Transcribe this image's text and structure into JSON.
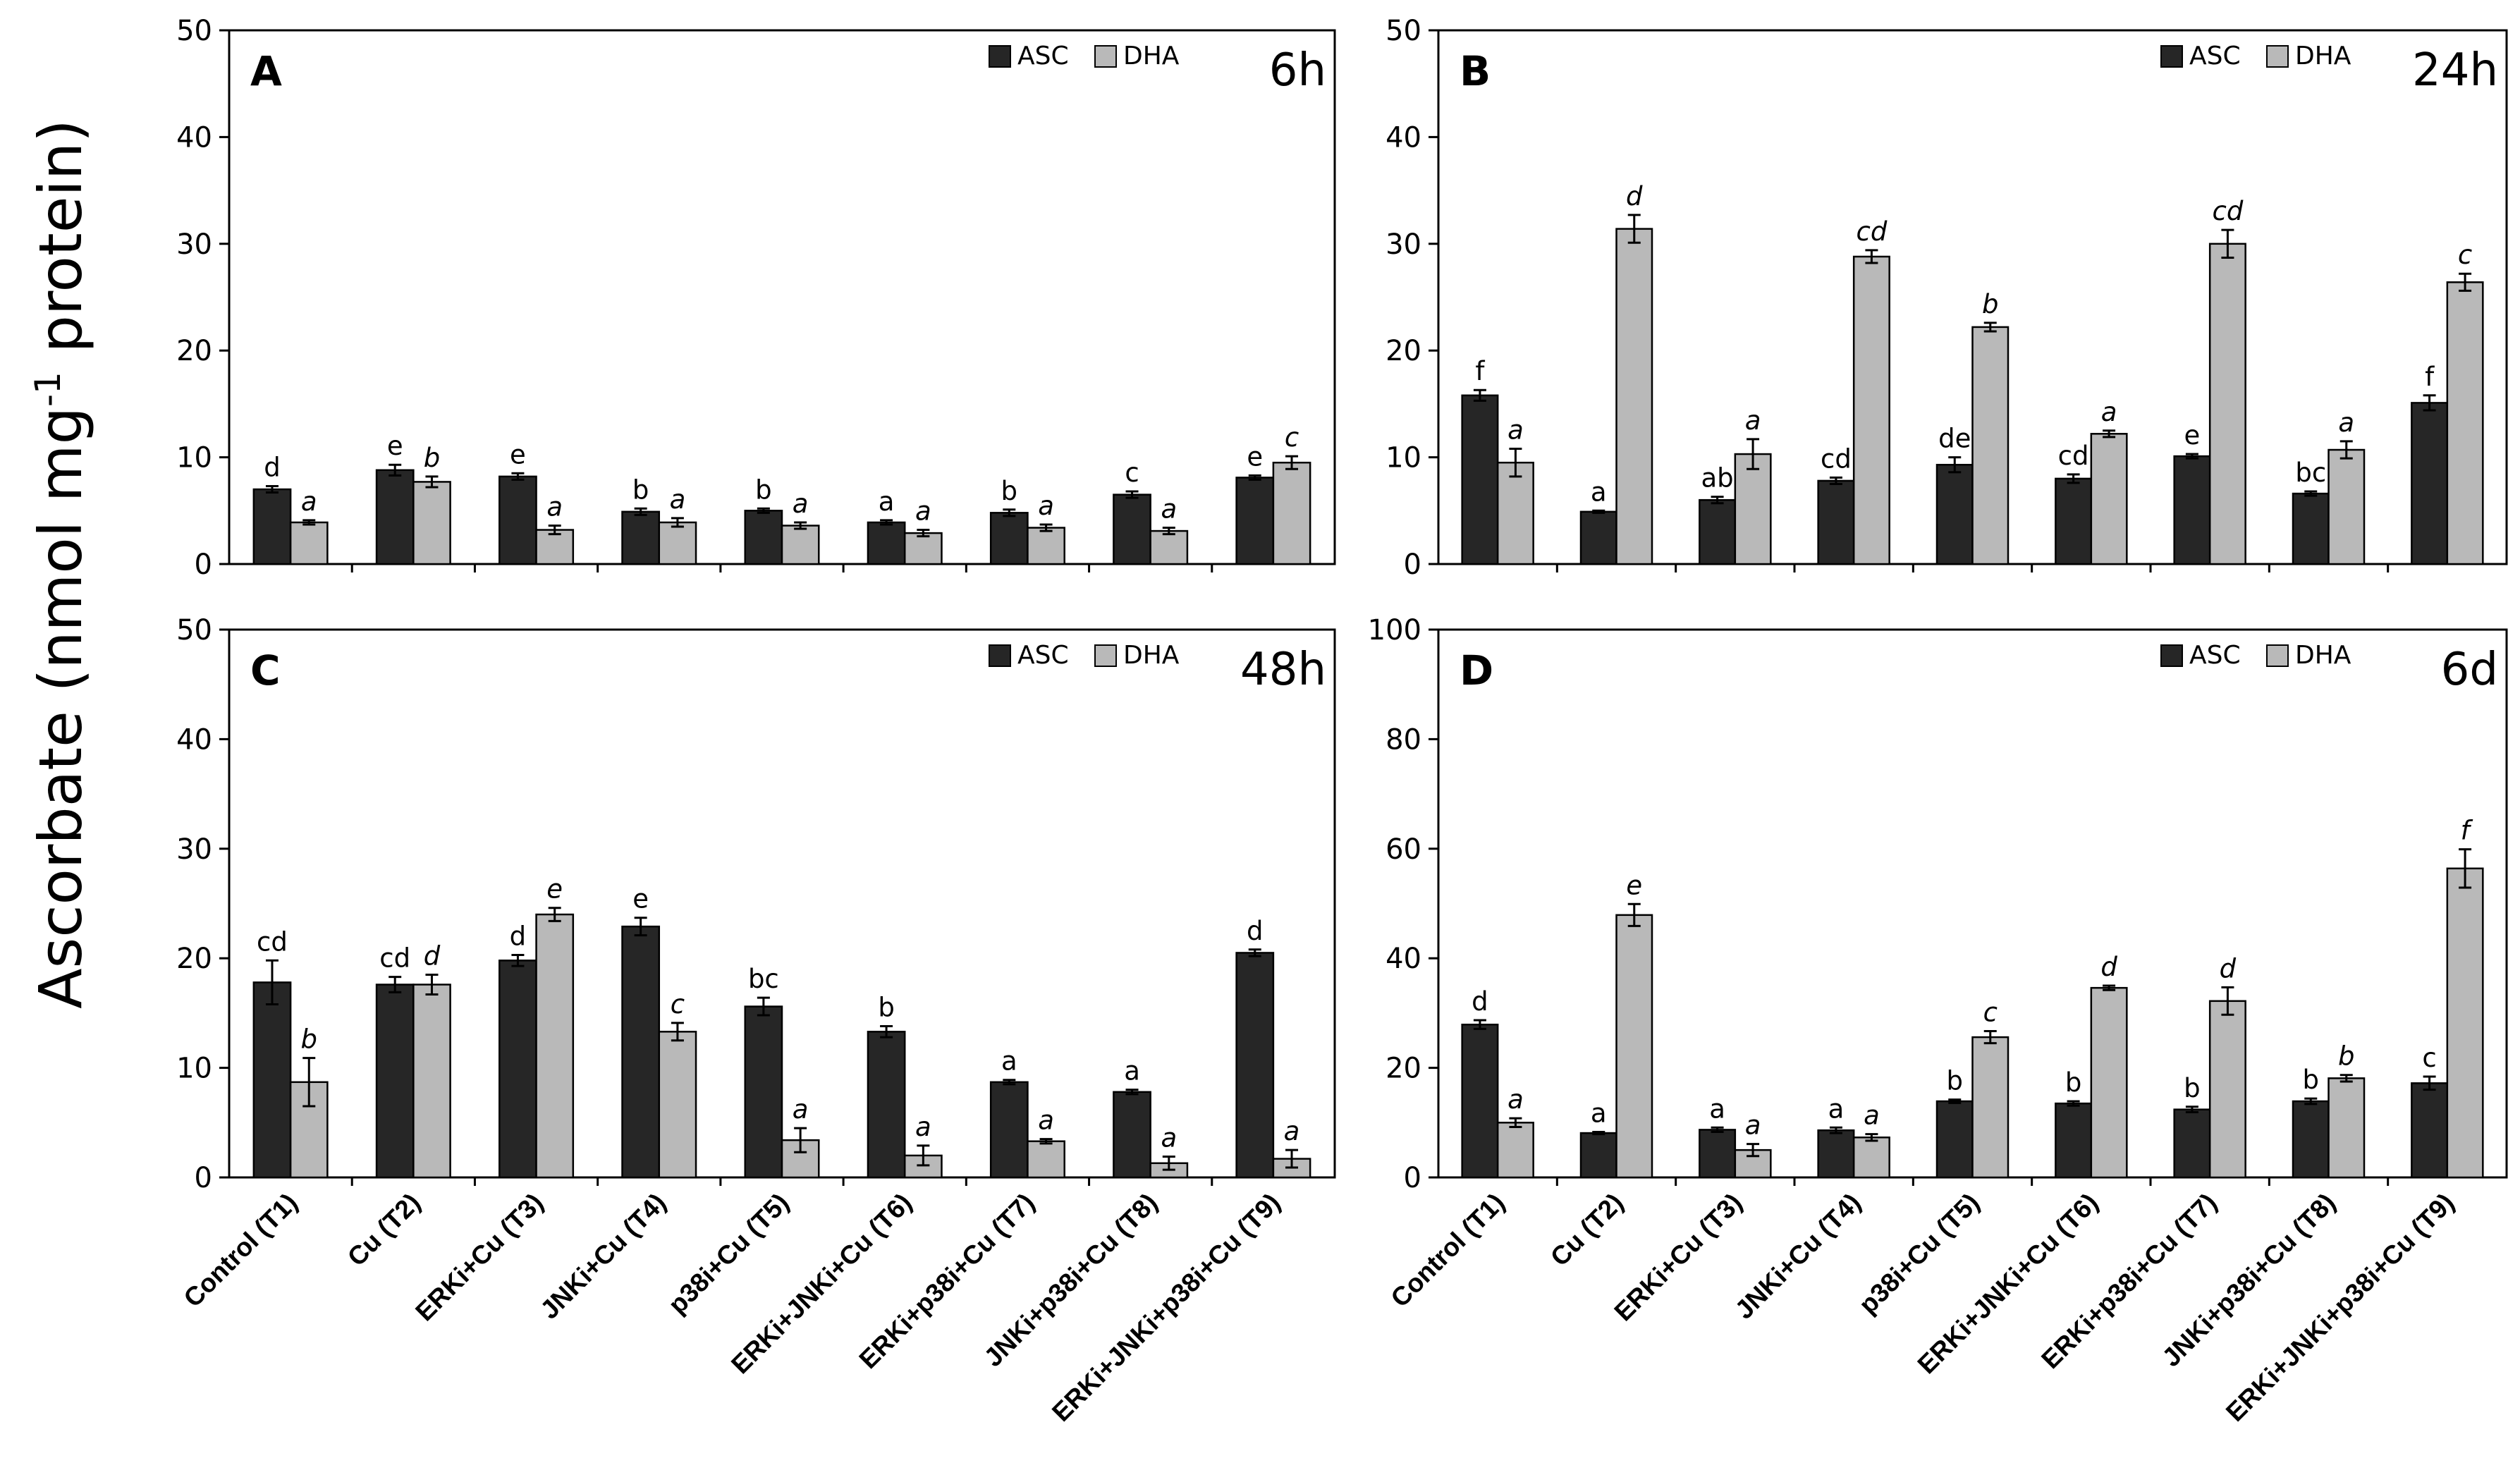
{
  "y_axis_label": "Ascorbate (nmol mg",
  "y_axis_label_sup": "-1",
  "y_axis_label_end": " protein)",
  "colors": {
    "asc": "#262626",
    "dha": "#b9b9b9",
    "axis": "#000000"
  },
  "legend": {
    "asc": "ASC",
    "dha": "DHA"
  },
  "chart_data": [
    {
      "panel": "A",
      "type": "bar",
      "time_label": "6h",
      "ylim": [
        0,
        50
      ],
      "yticks": [
        0,
        10,
        20,
        30,
        40,
        50
      ],
      "categories": [
        "Control (T1)",
        "Cu (T2)",
        "ERKi+Cu (T3)",
        "JNKi+Cu (T4)",
        "p38i+Cu (T5)",
        "ERKi+JNKi+Cu (T6)",
        "ERKi+p38i+Cu (T7)",
        "JNKi+p38i+Cu (T8)",
        "ERKi+JNKi+p38i+Cu (T9)"
      ],
      "show_category_labels": false,
      "series": [
        {
          "name": "ASC",
          "values": [
            7.0,
            8.8,
            8.2,
            4.9,
            5.0,
            3.9,
            4.8,
            6.5,
            8.1
          ],
          "errors": [
            0.3,
            0.5,
            0.3,
            0.3,
            0.2,
            0.2,
            0.3,
            0.3,
            0.2
          ],
          "labels": [
            "d",
            "e",
            "e",
            "b",
            "b",
            "a",
            "b",
            "c",
            "e"
          ]
        },
        {
          "name": "DHA",
          "values": [
            3.9,
            7.7,
            3.2,
            3.9,
            3.6,
            2.9,
            3.4,
            3.1,
            9.5
          ],
          "errors": [
            0.2,
            0.5,
            0.4,
            0.4,
            0.3,
            0.3,
            0.3,
            0.3,
            0.6
          ],
          "labels": [
            "a",
            "b",
            "a",
            "a",
            "a",
            "a",
            "a",
            "a",
            "c"
          ]
        }
      ]
    },
    {
      "panel": "B",
      "type": "bar",
      "time_label": "24h",
      "ylim": [
        0,
        50
      ],
      "yticks": [
        0,
        10,
        20,
        30,
        40,
        50
      ],
      "categories": [
        "Control (T1)",
        "Cu (T2)",
        "ERKi+Cu (T3)",
        "JNKi+Cu (T4)",
        "p38i+Cu (T5)",
        "ERKi+JNKi+Cu (T6)",
        "ERKi+p38i+Cu (T7)",
        "JNKi+p38i+Cu (T8)",
        "ERKi+JNKi+p38i+Cu (T9)"
      ],
      "show_category_labels": false,
      "series": [
        {
          "name": "ASC",
          "values": [
            15.8,
            4.9,
            6.0,
            7.8,
            9.3,
            8.0,
            10.1,
            6.6,
            15.1
          ],
          "errors": [
            0.5,
            0.1,
            0.3,
            0.3,
            0.7,
            0.4,
            0.2,
            0.2,
            0.7
          ],
          "labels": [
            "f",
            "a",
            "ab",
            "cd",
            "de",
            "cd",
            "e",
            "bc",
            "f"
          ]
        },
        {
          "name": "DHA",
          "values": [
            9.5,
            31.4,
            10.3,
            28.8,
            22.2,
            12.2,
            30.0,
            10.7,
            26.4
          ],
          "errors": [
            1.3,
            1.3,
            1.4,
            0.6,
            0.4,
            0.3,
            1.3,
            0.8,
            0.8
          ],
          "labels": [
            "a",
            "d",
            "a",
            "cd",
            "b",
            "a",
            "cd",
            "a",
            "c"
          ]
        }
      ]
    },
    {
      "panel": "C",
      "type": "bar",
      "time_label": "48h",
      "ylim": [
        0,
        50
      ],
      "yticks": [
        0,
        10,
        20,
        30,
        40,
        50
      ],
      "categories": [
        "Control (T1)",
        "Cu (T2)",
        "ERKi+Cu (T3)",
        "JNKi+Cu (T4)",
        "p38i+Cu (T5)",
        "ERKi+JNKi+Cu (T6)",
        "ERKi+p38i+Cu (T7)",
        "JNKi+p38i+Cu (T8)",
        "ERKi+JNKi+p38i+Cu (T9)"
      ],
      "show_category_labels": true,
      "series": [
        {
          "name": "ASC",
          "values": [
            17.8,
            17.6,
            19.8,
            22.9,
            15.6,
            13.3,
            8.7,
            7.8,
            20.5
          ],
          "errors": [
            2.0,
            0.7,
            0.5,
            0.8,
            0.8,
            0.5,
            0.2,
            0.2,
            0.3
          ],
          "labels": [
            "cd",
            "cd",
            "d",
            "e",
            "bc",
            "b",
            "a",
            "a",
            "d"
          ]
        },
        {
          "name": "DHA",
          "values": [
            8.7,
            17.6,
            24.0,
            13.3,
            3.4,
            2.0,
            3.3,
            1.3,
            1.7
          ],
          "errors": [
            2.2,
            0.9,
            0.6,
            0.8,
            1.1,
            0.9,
            0.2,
            0.6,
            0.8
          ],
          "labels": [
            "b",
            "d",
            "e",
            "c",
            "a",
            "a",
            "a",
            "a",
            "a"
          ]
        }
      ]
    },
    {
      "panel": "D",
      "type": "bar",
      "time_label": "6d",
      "ylim": [
        0,
        100
      ],
      "yticks": [
        0,
        20,
        40,
        60,
        80,
        100
      ],
      "categories": [
        "Control (T1)",
        "Cu (T2)",
        "ERKi+Cu (T3)",
        "JNKi+Cu (T4)",
        "p38i+Cu (T5)",
        "ERKi+JNKi+Cu (T6)",
        "ERKi+p38i+Cu (T7)",
        "JNKi+p38i+Cu (T8)",
        "ERKi+JNKi+p38i+Cu (T9)"
      ],
      "show_category_labels": true,
      "series": [
        {
          "name": "ASC",
          "values": [
            27.9,
            8.1,
            8.7,
            8.6,
            13.9,
            13.5,
            12.4,
            13.9,
            17.2
          ],
          "errors": [
            0.8,
            0.2,
            0.4,
            0.5,
            0.3,
            0.4,
            0.5,
            0.5,
            1.2
          ],
          "labels": [
            "d",
            "a",
            "a",
            "a",
            "b",
            "b",
            "b",
            "b",
            "c"
          ]
        },
        {
          "name": "DHA",
          "values": [
            10.0,
            47.9,
            5.0,
            7.3,
            25.6,
            34.6,
            32.2,
            18.1,
            56.4
          ],
          "errors": [
            0.8,
            2.0,
            1.1,
            0.6,
            1.1,
            0.4,
            2.5,
            0.6,
            3.5
          ],
          "labels": [
            "a",
            "e",
            "a",
            "a",
            "c",
            "d",
            "d",
            "b",
            "f"
          ]
        }
      ]
    }
  ]
}
